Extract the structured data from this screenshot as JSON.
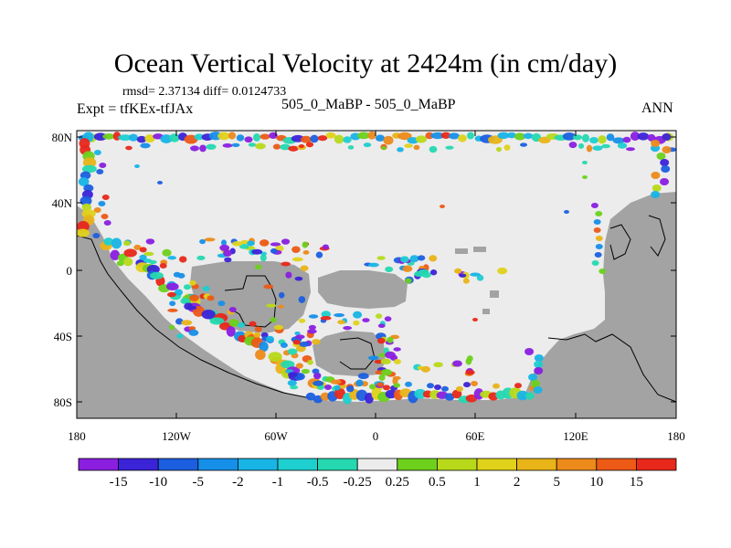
{
  "title": "Ocean Vertical Velocity at 2424m (in cm/day)",
  "stats": "rmsd= 2.37134 diff= 0.0124733",
  "expt": "Expt = tfKEx-tfJAx",
  "case": "505_0_MaBP - 505_0_MaBP",
  "season": "ANN",
  "lat_ticks": [
    "80N",
    "40N",
    "0",
    "40S",
    "80S"
  ],
  "lon_ticks": [
    "180",
    "120W",
    "60W",
    "0",
    "60E",
    "120E",
    "180"
  ],
  "colorbar": {
    "labels": [
      "-15",
      "-10",
      "-5",
      "-2",
      "-1",
      "-0.5",
      "-0.25",
      "0.25",
      "0.5",
      "1",
      "2",
      "5",
      "10",
      "15"
    ],
    "colors": [
      "#8a1fe0",
      "#3b23d8",
      "#1b5fe0",
      "#168fe8",
      "#18b4e6",
      "#1ecfd0",
      "#25d8b0",
      "#ececec",
      "#6dd11c",
      "#b8d91a",
      "#e0d21a",
      "#e8b418",
      "#ec8a1a",
      "#ec5a16",
      "#e8281a"
    ]
  },
  "colors": {
    "land": "#a3a3a3",
    "ocean_neutral": "#ececec"
  }
}
